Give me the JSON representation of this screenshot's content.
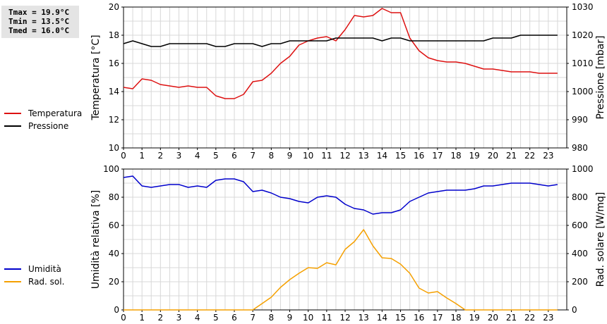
{
  "stats": {
    "tmax": "Tmax = 19.9°C",
    "tmin": "Tmin = 13.5°C",
    "tmed": "Tmed = 16.0°C"
  },
  "legend_top": [
    {
      "label": "Temperatura",
      "color": "#dd1111"
    },
    {
      "label": "Pressione",
      "color": "#000000"
    }
  ],
  "legend_bottom": [
    {
      "label": "Umidità",
      "color": "#0000cc"
    },
    {
      "label": "Rad. sol.",
      "color": "#f5a000"
    }
  ],
  "chart_data": [
    {
      "type": "line",
      "xlim": [
        0,
        24
      ],
      "xticks": [
        0,
        1,
        2,
        3,
        4,
        5,
        6,
        7,
        8,
        9,
        10,
        11,
        12,
        13,
        14,
        15,
        16,
        17,
        18,
        19,
        20,
        21,
        22,
        23
      ],
      "ylabel": "Temperatura [°C]",
      "ylim": [
        10,
        20
      ],
      "yticks": [
        10,
        12,
        14,
        16,
        18,
        20
      ],
      "y2label": "Pressione [mbar]",
      "y2lim": [
        980,
        1030
      ],
      "y2ticks": [
        980,
        990,
        1000,
        1010,
        1020,
        1030
      ],
      "grid": true,
      "series": [
        {
          "name": "Temperatura",
          "axis": "left",
          "color": "#dd1111",
          "x": [
            0,
            0.5,
            1,
            1.5,
            2,
            2.5,
            3,
            3.5,
            4,
            4.5,
            5,
            5.5,
            6,
            6.5,
            7,
            7.5,
            8,
            8.5,
            9,
            9.5,
            10,
            10.5,
            11,
            11.5,
            12,
            12.5,
            13,
            13.5,
            14,
            14.5,
            15,
            15.5,
            16,
            16.5,
            17,
            17.5,
            18,
            18.5,
            19,
            19.5,
            20,
            20.5,
            21,
            21.5,
            22,
            22.5,
            23,
            23.5
          ],
          "values": [
            14.3,
            14.2,
            14.9,
            14.8,
            14.5,
            14.4,
            14.3,
            14.4,
            14.3,
            14.3,
            13.7,
            13.5,
            13.5,
            13.8,
            14.7,
            14.8,
            15.3,
            16.0,
            16.5,
            17.3,
            17.6,
            17.8,
            17.9,
            17.6,
            18.4,
            19.4,
            19.3,
            19.4,
            19.9,
            19.6,
            19.6,
            17.8,
            16.9,
            16.4,
            16.2,
            16.1,
            16.1,
            16.0,
            15.8,
            15.6,
            15.6,
            15.5,
            15.4,
            15.4,
            15.4,
            15.3,
            15.3,
            15.3
          ]
        },
        {
          "name": "Pressione",
          "axis": "right",
          "color": "#000000",
          "x": [
            0,
            0.5,
            1,
            1.5,
            2,
            2.5,
            3,
            3.5,
            4,
            4.5,
            5,
            5.5,
            6,
            6.5,
            7,
            7.5,
            8,
            8.5,
            9,
            9.5,
            10,
            10.5,
            11,
            11.5,
            12,
            12.5,
            13,
            13.5,
            14,
            14.5,
            15,
            15.5,
            16,
            16.5,
            17,
            17.5,
            18,
            18.5,
            19,
            19.5,
            20,
            20.5,
            21,
            21.5,
            22,
            22.5,
            23,
            23.5
          ],
          "values": [
            1017,
            1018,
            1017,
            1016,
            1016,
            1017,
            1017,
            1017,
            1017,
            1017,
            1016,
            1016,
            1017,
            1017,
            1017,
            1016,
            1017,
            1017,
            1018,
            1018,
            1018,
            1018,
            1018,
            1019,
            1019,
            1019,
            1019,
            1019,
            1018,
            1019,
            1019,
            1018,
            1018,
            1018,
            1018,
            1018,
            1018,
            1018,
            1018,
            1018,
            1019,
            1019,
            1019,
            1020,
            1020,
            1020,
            1020,
            1020
          ]
        }
      ]
    },
    {
      "type": "line",
      "xlim": [
        0,
        24
      ],
      "xticks": [
        0,
        1,
        2,
        3,
        4,
        5,
        6,
        7,
        8,
        9,
        10,
        11,
        12,
        13,
        14,
        15,
        16,
        17,
        18,
        19,
        20,
        21,
        22,
        23
      ],
      "ylabel": "Umidità relativa [%]",
      "ylim": [
        0,
        100
      ],
      "yticks": [
        0,
        20,
        40,
        60,
        80,
        100
      ],
      "y2label": "Rad. solare [W/mq]",
      "y2lim": [
        0,
        1000
      ],
      "y2ticks": [
        0,
        200,
        400,
        600,
        800,
        1000
      ],
      "grid": true,
      "series": [
        {
          "name": "Umidità",
          "axis": "left",
          "color": "#0000cc",
          "x": [
            0,
            0.5,
            1,
            1.5,
            2,
            2.5,
            3,
            3.5,
            4,
            4.5,
            5,
            5.5,
            6,
            6.5,
            7,
            7.5,
            8,
            8.5,
            9,
            9.5,
            10,
            10.5,
            11,
            11.5,
            12,
            12.5,
            13,
            13.5,
            14,
            14.5,
            15,
            15.5,
            16,
            16.5,
            17,
            17.5,
            18,
            18.5,
            19,
            19.5,
            20,
            20.5,
            21,
            21.5,
            22,
            22.5,
            23,
            23.5
          ],
          "values": [
            94,
            95,
            88,
            87,
            88,
            89,
            89,
            87,
            88,
            87,
            92,
            93,
            93,
            91,
            84,
            85,
            83,
            80,
            79,
            77,
            76,
            80,
            81,
            80,
            75,
            72,
            71,
            68,
            69,
            69,
            71,
            77,
            80,
            83,
            84,
            85,
            85,
            85,
            86,
            88,
            88,
            89,
            90,
            90,
            90,
            89,
            88,
            89
          ]
        },
        {
          "name": "Rad. sol.",
          "axis": "right",
          "color": "#f5a000",
          "x": [
            0,
            0.5,
            1,
            1.5,
            2,
            2.5,
            3,
            3.5,
            4,
            4.5,
            5,
            5.5,
            6,
            6.5,
            7,
            7.5,
            8,
            8.5,
            9,
            9.5,
            10,
            10.5,
            11,
            11.5,
            12,
            12.5,
            13,
            13.5,
            14,
            14.5,
            15,
            15.5,
            16,
            16.5,
            17,
            17.5,
            18,
            18.5,
            19,
            19.5,
            20,
            20.5,
            21,
            21.5,
            22,
            22.5,
            23,
            23.5
          ],
          "values": [
            0,
            0,
            0,
            0,
            0,
            0,
            0,
            0,
            0,
            0,
            0,
            0,
            0,
            0,
            0,
            45,
            90,
            160,
            215,
            260,
            300,
            295,
            335,
            320,
            430,
            485,
            570,
            455,
            370,
            365,
            325,
            260,
            155,
            120,
            130,
            85,
            45,
            0,
            0,
            0,
            0,
            0,
            0,
            0,
            0,
            0,
            0,
            0
          ]
        }
      ]
    }
  ]
}
